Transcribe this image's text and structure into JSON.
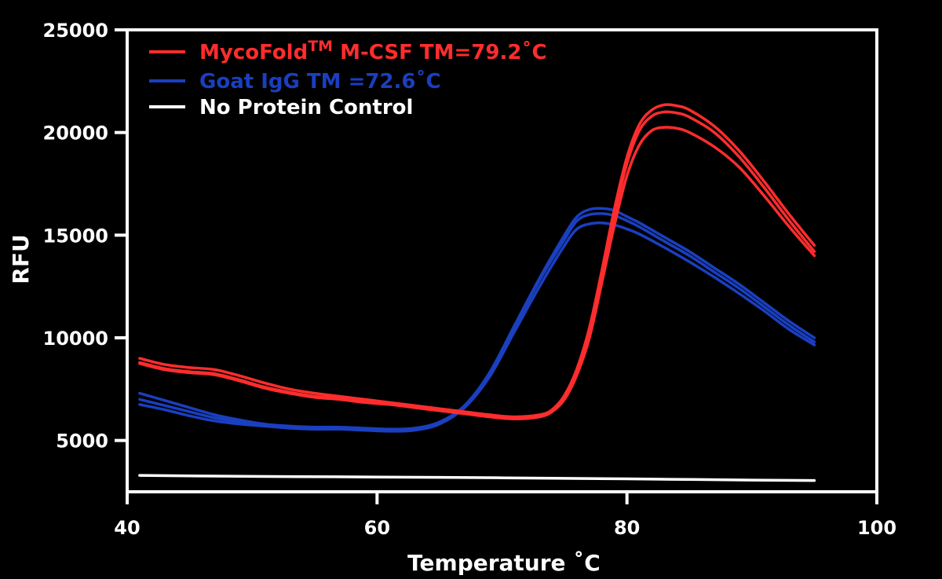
{
  "chart_data": {
    "type": "line",
    "xlabel": "Temperature ˚C",
    "ylabel": "RFU",
    "xlim": [
      40,
      100
    ],
    "ylim": [
      2500,
      25000
    ],
    "xticks": [
      "40",
      "60",
      "80",
      "100"
    ],
    "yticks": [
      "5000",
      "10000",
      "15000",
      "20000",
      "25000"
    ],
    "legend_position": "top-left",
    "grid": false,
    "series": [
      {
        "name": "MycoFold",
        "name_sup": "TM",
        "name_suffix": " M-CSF TM=79.2˚C",
        "color": "#ff2d2d",
        "replicates": [
          {
            "x": [
              41,
              43,
              45,
              47,
              49,
              51,
              53,
              55,
              57,
              59,
              61,
              63,
              65,
              67,
              69,
              71,
              73,
              74,
              75,
              76,
              77,
              78,
              79,
              80,
              81,
              82,
              83,
              84,
              85,
              87,
              89,
              91,
              93,
              95
            ],
            "y": [
              9000,
              8700,
              8550,
              8450,
              8150,
              7800,
              7500,
              7300,
              7150,
              7000,
              6850,
              6700,
              6550,
              6400,
              6250,
              6150,
              6250,
              6500,
              7200,
              8500,
              10500,
              13300,
              16300,
              18800,
              20400,
              21100,
              21350,
              21300,
              21100,
              20300,
              19100,
              17600,
              16000,
              14500
            ]
          },
          {
            "x": [
              41,
              43,
              45,
              47,
              49,
              51,
              53,
              55,
              57,
              59,
              61,
              63,
              65,
              67,
              69,
              71,
              73,
              74,
              75,
              76,
              77,
              78,
              79,
              80,
              81,
              82,
              83,
              84,
              85,
              87,
              89,
              91,
              93,
              95
            ],
            "y": [
              8800,
              8500,
              8350,
              8250,
              7950,
              7600,
              7350,
              7150,
              7050,
              6900,
              6800,
              6650,
              6500,
              6350,
              6200,
              6100,
              6200,
              6450,
              7100,
              8400,
              10300,
              13100,
              16000,
              18500,
              20100,
              20800,
              21000,
              20950,
              20750,
              20000,
              18800,
              17300,
              15700,
              14200
            ]
          },
          {
            "x": [
              41,
              43,
              45,
              47,
              49,
              51,
              53,
              55,
              57,
              59,
              61,
              63,
              65,
              67,
              69,
              71,
              73,
              74,
              75,
              76,
              77,
              78,
              79,
              80,
              81,
              82,
              83,
              84,
              85,
              87,
              89,
              91,
              93,
              95
            ],
            "y": [
              8750,
              8450,
              8300,
              8200,
              7900,
              7550,
              7300,
              7100,
              7000,
              6850,
              6750,
              6600,
              6450,
              6300,
              6150,
              6050,
              6150,
              6400,
              7000,
              8200,
              10000,
              12700,
              15500,
              17900,
              19400,
              20100,
              20250,
              20200,
              20000,
              19300,
              18300,
              16900,
              15400,
              14000
            ]
          }
        ]
      },
      {
        "name": "Goat IgG TM =72.6˚C",
        "color": "#1a3fbf",
        "replicates": [
          {
            "x": [
              41,
              43,
              45,
              47,
              49,
              51,
              53,
              55,
              57,
              59,
              61,
              63,
              65,
              67,
              69,
              71,
              73,
              75,
              76,
              77,
              78,
              79,
              80,
              81,
              83,
              85,
              87,
              89,
              91,
              93,
              95
            ],
            "y": [
              7300,
              6950,
              6600,
              6250,
              6000,
              5800,
              5700,
              5650,
              5650,
              5600,
              5550,
              5600,
              5900,
              6700,
              8300,
              10600,
              12900,
              15000,
              15900,
              16250,
              16300,
              16200,
              15900,
              15600,
              14900,
              14200,
              13400,
              12600,
              11700,
              10800,
              10000
            ]
          },
          {
            "x": [
              41,
              43,
              45,
              47,
              49,
              51,
              53,
              55,
              57,
              59,
              61,
              63,
              65,
              67,
              69,
              71,
              73,
              75,
              76,
              77,
              78,
              79,
              80,
              81,
              83,
              85,
              87,
              89,
              91,
              93,
              95
            ],
            "y": [
              7000,
              6700,
              6400,
              6100,
              5900,
              5750,
              5650,
              5600,
              5600,
              5550,
              5500,
              5550,
              5850,
              6650,
              8200,
              10500,
              12800,
              14800,
              15700,
              16000,
              16050,
              15950,
              15700,
              15400,
              14700,
              14000,
              13200,
              12400,
              11500,
              10600,
              9800
            ]
          },
          {
            "x": [
              41,
              43,
              45,
              47,
              49,
              51,
              53,
              55,
              57,
              59,
              61,
              63,
              65,
              67,
              69,
              71,
              73,
              75,
              76,
              77,
              78,
              79,
              80,
              81,
              83,
              85,
              87,
              89,
              91,
              93,
              95
            ],
            "y": [
              6750,
              6500,
              6200,
              5950,
              5800,
              5700,
              5600,
              5550,
              5550,
              5500,
              5450,
              5500,
              5800,
              6600,
              8100,
              10300,
              12500,
              14500,
              15300,
              15550,
              15600,
              15500,
              15300,
              15050,
              14400,
              13700,
              12950,
              12150,
              11300,
              10400,
              9650
            ]
          }
        ]
      },
      {
        "name": "No Protein Control",
        "color": "#ffffff",
        "replicates": [
          {
            "x": [
              41,
              50,
              60,
              70,
              80,
              90,
              95
            ],
            "y": [
              3300,
              3250,
              3220,
              3180,
              3130,
              3070,
              3050
            ]
          }
        ]
      }
    ]
  }
}
